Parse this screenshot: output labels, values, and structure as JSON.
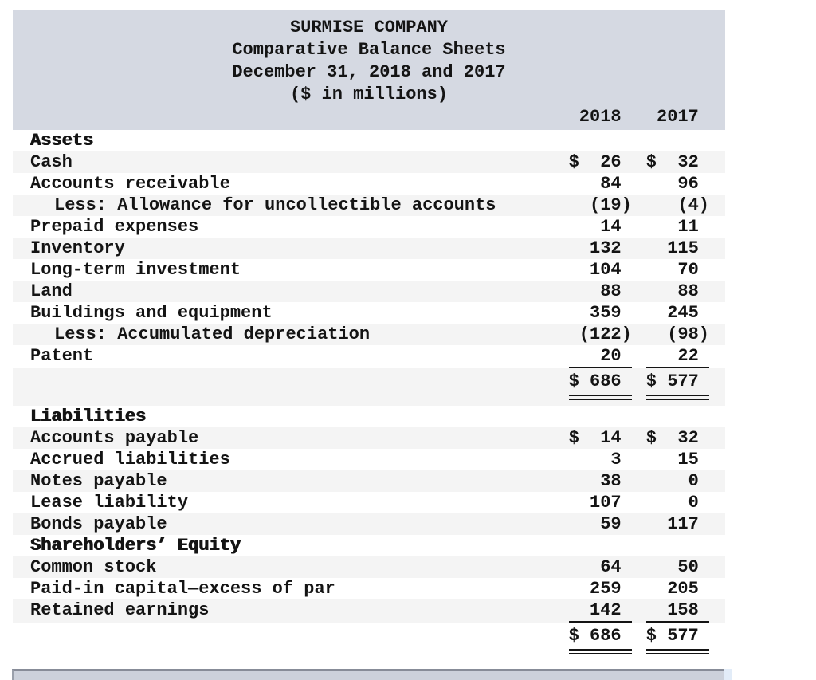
{
  "header": {
    "company": "SURMISE COMPANY",
    "subtitle1": "Comparative Balance Sheets",
    "subtitle2": "December 31, 2018 and 2017",
    "subtitle3": "($ in millions)",
    "col_2018": "2018",
    "col_2017": "2017"
  },
  "colors": {
    "band_bg": "#d5d9e2",
    "stripe_bg": "#f4f4f4",
    "text": "#141414",
    "bar_fill": "#ccd1db",
    "bar_border": "#878c98"
  },
  "rows": [
    {
      "type": "section",
      "label": "Assets",
      "v2018": "",
      "v2017": ""
    },
    {
      "type": "item",
      "label": "Cash",
      "v2018": "$ 26",
      "v2017": "$ 32"
    },
    {
      "type": "item",
      "label": "Accounts receivable",
      "v2018": "84",
      "v2017": "96"
    },
    {
      "type": "indent",
      "label": "Less: Allowance for uncollectible accounts",
      "v2018": "(19)",
      "v2017": "(4)"
    },
    {
      "type": "item",
      "label": "Prepaid expenses",
      "v2018": "14",
      "v2017": "11"
    },
    {
      "type": "item",
      "label": "Inventory",
      "v2018": "132",
      "v2017": "115"
    },
    {
      "type": "item",
      "label": "Long-term investment",
      "v2018": "104",
      "v2017": "70"
    },
    {
      "type": "item",
      "label": "Land",
      "v2018": "88",
      "v2017": "88"
    },
    {
      "type": "item",
      "label": "Buildings and equipment",
      "v2018": "359",
      "v2017": "245"
    },
    {
      "type": "indent",
      "label": "Less: Accumulated depreciation",
      "v2018": "(122)",
      "v2017": "(98)"
    },
    {
      "type": "subtotal",
      "label": "Patent",
      "v2018": "20",
      "v2017": "22"
    },
    {
      "type": "total",
      "label": "",
      "v2018": "$ 686",
      "v2017": "$ 577"
    },
    {
      "type": "section",
      "label": "Liabilities",
      "v2018": "",
      "v2017": ""
    },
    {
      "type": "item",
      "label": "Accounts payable",
      "v2018": "$ 14",
      "v2017": "$ 32"
    },
    {
      "type": "item",
      "label": "Accrued liabilities",
      "v2018": "3",
      "v2017": "15"
    },
    {
      "type": "item",
      "label": "Notes payable",
      "v2018": "38",
      "v2017": "0"
    },
    {
      "type": "item",
      "label": "Lease liability",
      "v2018": "107",
      "v2017": "0"
    },
    {
      "type": "item",
      "label": "Bonds payable",
      "v2018": "59",
      "v2017": "117"
    },
    {
      "type": "section",
      "label": "Shareholders’ Equity",
      "v2018": "",
      "v2017": ""
    },
    {
      "type": "item",
      "label": "Common stock",
      "v2018": "64",
      "v2017": "50"
    },
    {
      "type": "item",
      "label": "Paid-in capital—excess of par",
      "v2018": "259",
      "v2017": "205"
    },
    {
      "type": "subtotal",
      "label": "Retained earnings",
      "v2018": "142",
      "v2017": "158"
    },
    {
      "type": "total",
      "label": "",
      "v2018": "$ 686",
      "v2017": "$ 577"
    }
  ]
}
